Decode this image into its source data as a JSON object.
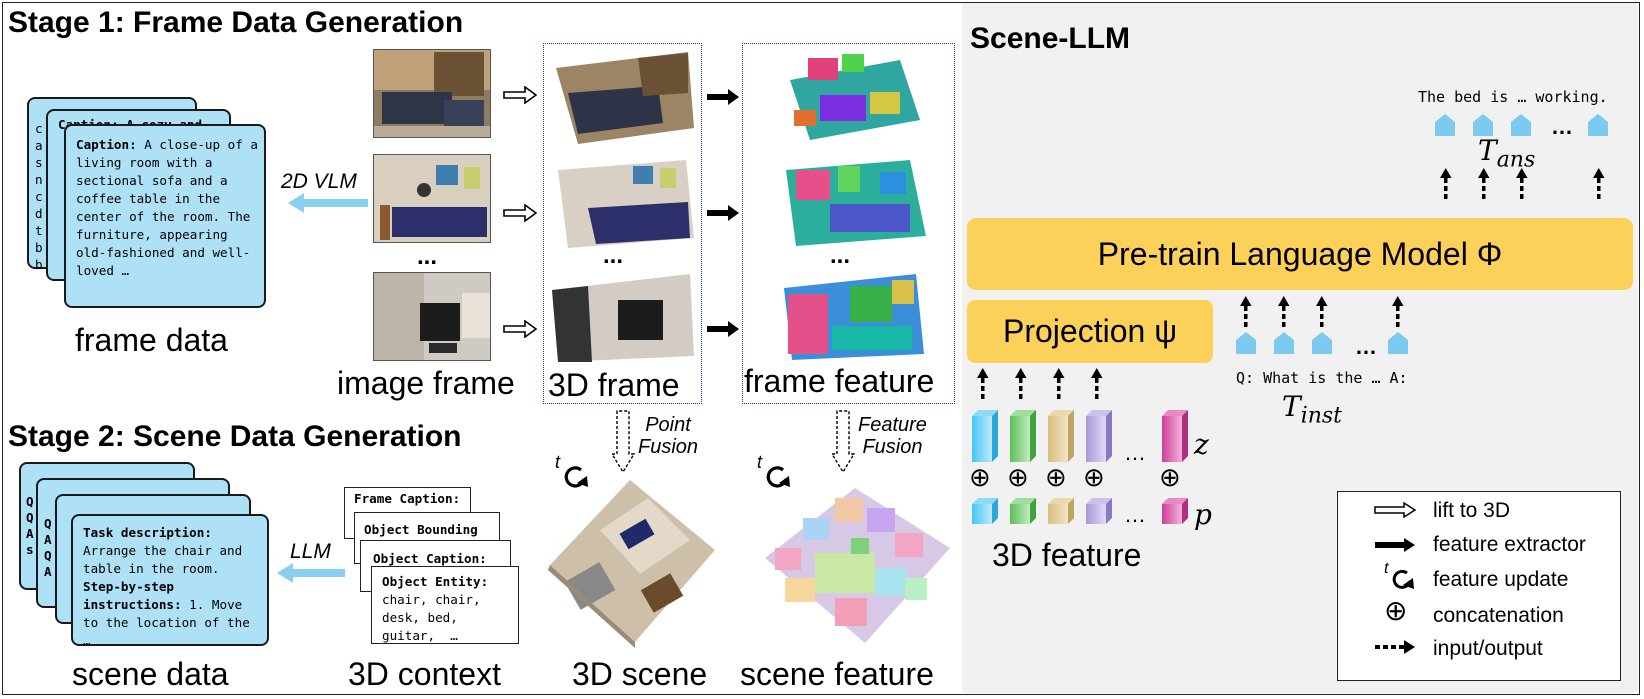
{
  "stage1": {
    "title": "Stage 1: Frame Data Generation",
    "vlm_label": "2D VLM",
    "caption_back1": "Caption: A cozy and",
    "caption_back_letters": [
      "c",
      "a",
      "s",
      "n",
      "c",
      "d",
      "t",
      "b",
      "b"
    ],
    "caption_card_label": "Caption:",
    "caption_card_text": " A close-up of a living room with a sectional sofa and a coffee table in the center of the room. The furniture, appearing old-fashioned and well-loved …",
    "frame_data_label": "frame data",
    "image_frame_label": "image frame",
    "frame3d_label": "3D frame",
    "frame_feature_label": "frame feature",
    "ellipsis": "..."
  },
  "stage2": {
    "title": "Stage 2: Scene Data Generation",
    "llm_label": "LLM",
    "back_letters": [
      "Q",
      "Q",
      "A",
      "s",
      "Q",
      "A",
      "Q",
      "A"
    ],
    "task_label": "Task description:",
    "task_text": "Arrange the chair and table in the room.",
    "steps_label": "Step-by-step instructions:",
    "steps_text": " 1. Move to the location of the …",
    "scene_data_label": "scene data",
    "context_cards": [
      "Frame Caption:",
      "Object Bounding",
      "Object Caption:"
    ],
    "entity_label": "Object Entity:",
    "entity_text": "chair, chair, desk, bed, guitar,  …",
    "context_label": "3D context",
    "scene3d_label": "3D scene",
    "scene_feature_label": "scene feature",
    "point_fusion": [
      "Point",
      "Fusion"
    ],
    "feature_fusion": [
      "Feature",
      "Fusion"
    ],
    "t_glyph": "t"
  },
  "scene_llm": {
    "title": "Scene-LLM",
    "answer_text": "The bed is … working.",
    "t_ans_base": "T",
    "t_ans_sub": "ans",
    "lm_label": "Pre-train Language Model Φ",
    "projection_label": "Projection ψ",
    "question_text": "Q: What is the … A:",
    "t_inst_base": "T",
    "t_inst_sub": "inst",
    "z_label": "z",
    "p_label": "p",
    "feature3d_label": "3D feature",
    "ellipsis": "…",
    "plus": "⊕"
  },
  "legend": {
    "items": [
      {
        "icon": "hollow-arrow-icon",
        "label": "lift to 3D"
      },
      {
        "icon": "solid-arrow-icon",
        "label": "feature extractor"
      },
      {
        "icon": "rotate-icon",
        "label": "feature update"
      },
      {
        "icon": "circled-plus-icon",
        "label": "concatenation"
      },
      {
        "icon": "dotted-arrow-icon",
        "label": "input/output"
      }
    ]
  },
  "colors": {
    "card_blue": "#aee0f6",
    "token_blue": "#7ccaf0",
    "lm_yellow": "#fcd15a",
    "panel_gray": "#f1f1f1",
    "feature_colors": [
      "#5ec9f4",
      "#6ccb6a",
      "#ddc48a",
      "#b7a6df",
      "#d94fa6"
    ]
  }
}
